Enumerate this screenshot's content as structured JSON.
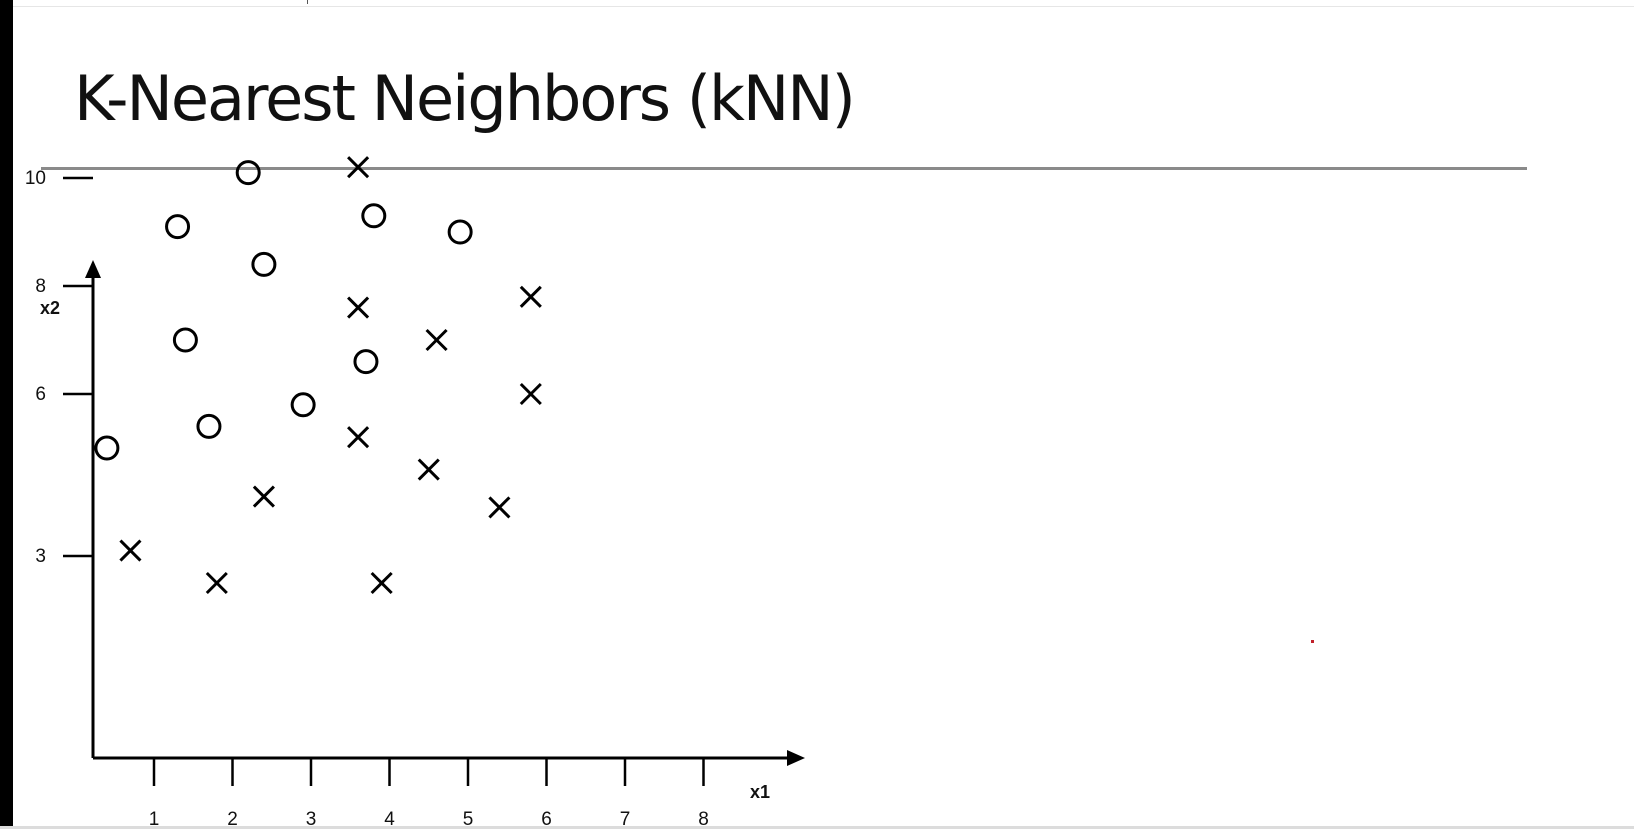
{
  "slide": {
    "title": "K-Nearest Neighbors (kNN)"
  },
  "chart_data": {
    "type": "scatter",
    "title": "",
    "xlabel": "x1",
    "ylabel": "x2",
    "xlim": [
      0.2,
      8.5
    ],
    "ylim": [
      2.0,
      11.0
    ],
    "x_ticks": [
      1,
      2,
      3,
      4,
      5,
      6,
      7,
      8
    ],
    "y_ticks": [
      3,
      6,
      8,
      10
    ],
    "y_tick_labels": [
      "3",
      "6",
      "8",
      "10"
    ],
    "grid": false,
    "legend": "none",
    "series": [
      {
        "marker": "circle",
        "color": "#000000",
        "points": [
          [
            0.4,
            5.0
          ],
          [
            1.3,
            9.1
          ],
          [
            1.4,
            7.0
          ],
          [
            1.7,
            5.4
          ],
          [
            2.2,
            10.1
          ],
          [
            2.4,
            8.4
          ],
          [
            2.9,
            5.8
          ],
          [
            3.7,
            6.6
          ],
          [
            3.8,
            9.3
          ],
          [
            4.9,
            9.0
          ]
        ]
      },
      {
        "marker": "x",
        "color": "#000000",
        "points": [
          [
            0.7,
            3.1
          ],
          [
            1.8,
            2.5
          ],
          [
            2.4,
            4.1
          ],
          [
            3.6,
            10.2
          ],
          [
            3.6,
            7.6
          ],
          [
            3.6,
            5.2
          ],
          [
            3.9,
            2.5
          ],
          [
            4.5,
            4.6
          ],
          [
            4.6,
            7.0
          ],
          [
            5.4,
            3.9
          ],
          [
            5.8,
            7.8
          ],
          [
            5.8,
            6.0
          ]
        ]
      }
    ]
  }
}
